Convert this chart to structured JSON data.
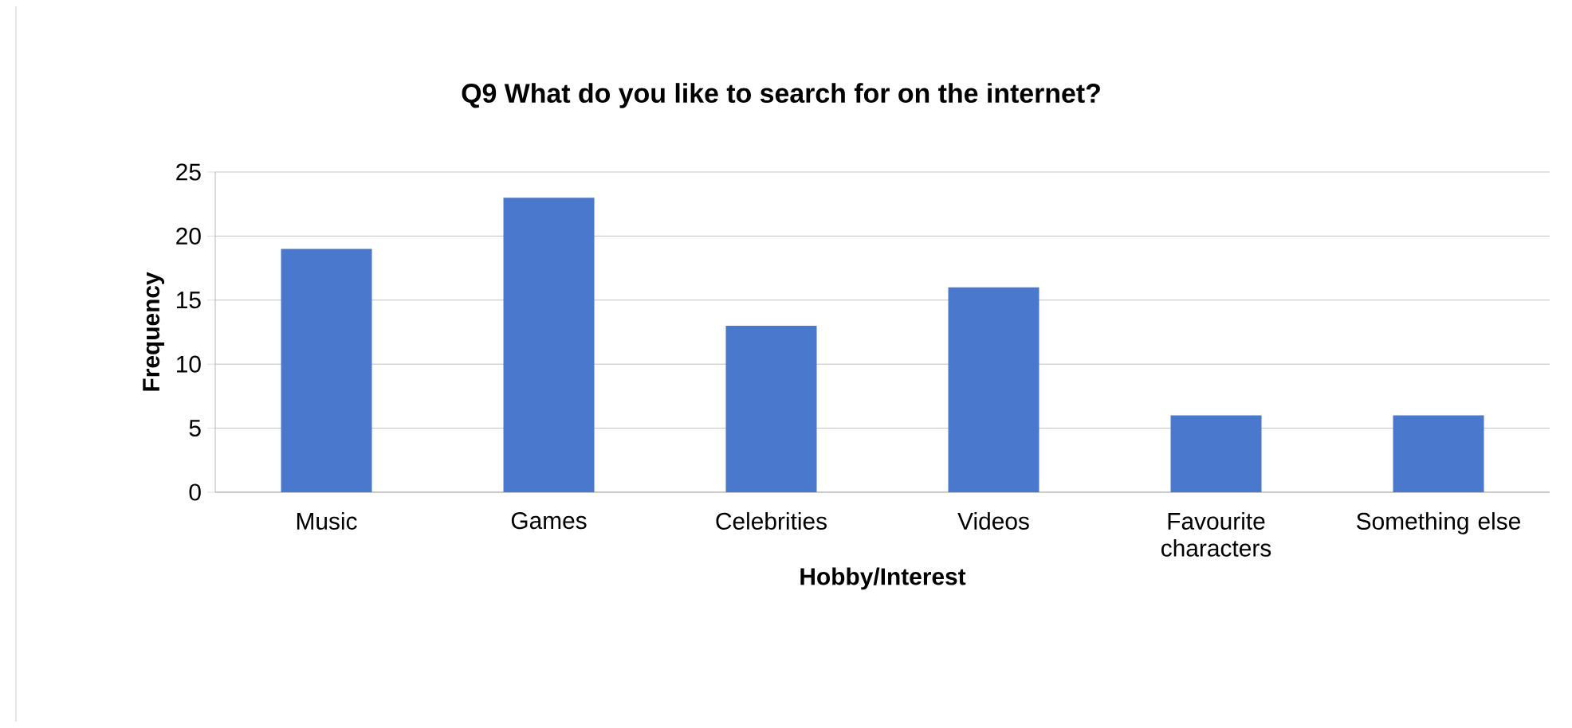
{
  "chart_data": {
    "type": "bar",
    "title": "Q9 What do you like to search for on the internet?",
    "xlabel": "Hobby/Interest",
    "ylabel": "Frequency",
    "categories": [
      "Music",
      "Games",
      "Celebrities",
      "Videos",
      "Favourite characters",
      "Something else"
    ],
    "values": [
      19,
      23,
      13,
      16,
      6,
      6
    ],
    "color": "#4a78cc",
    "ylim": [
      0,
      25
    ],
    "yticks": [
      0,
      5,
      10,
      15,
      20,
      25
    ],
    "grid": "y"
  }
}
